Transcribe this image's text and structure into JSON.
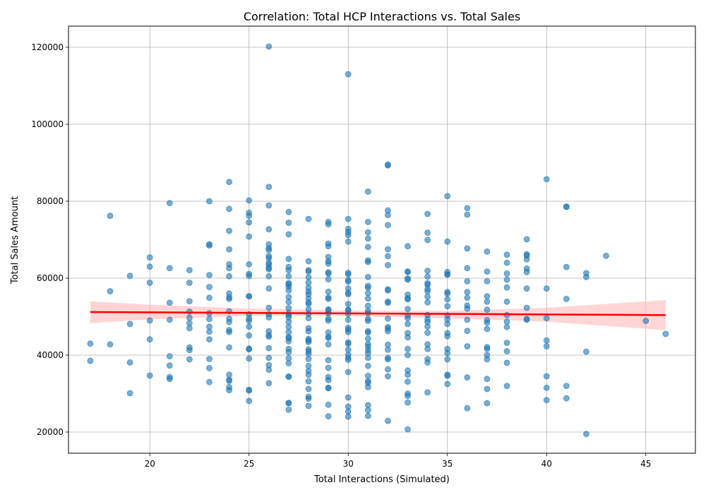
{
  "chart_data": {
    "type": "scatter",
    "title": "Correlation: Total HCP Interactions vs. Total Sales",
    "xlabel": "Total Interactions (Simulated)",
    "ylabel": "Total Sales Amount",
    "xlim": [
      15.9,
      47.5
    ],
    "ylim": [
      14500,
      125500
    ],
    "xticks": [
      20,
      25,
      30,
      35,
      40,
      45
    ],
    "yticks": [
      20000,
      40000,
      60000,
      80000,
      100000,
      120000
    ],
    "grid": true,
    "point_color": "#1f77b4",
    "regression_line_color": "#ff0000",
    "confidence_band_color": "#ffb3b3",
    "regression": {
      "x_start": 17,
      "x_end": 46,
      "y_start": 51200,
      "y_end": 50400
    },
    "confidence_band": {
      "x": [
        17,
        20,
        25,
        30,
        35,
        40,
        46
      ],
      "upper": [
        54000,
        53100,
        52100,
        51600,
        51500,
        52300,
        54300
      ],
      "lower": [
        48300,
        49300,
        50200,
        50100,
        49600,
        48700,
        46500
      ]
    },
    "points": [
      [
        26,
        120200
      ],
      [
        30,
        113000
      ],
      [
        32,
        89500
      ],
      [
        32,
        89300
      ],
      [
        40,
        85700
      ],
      [
        24,
        85000
      ],
      [
        26,
        83700
      ],
      [
        31,
        82500
      ],
      [
        35,
        81300
      ],
      [
        25,
        80200
      ],
      [
        23,
        80000
      ],
      [
        21,
        79500
      ],
      [
        26,
        78900
      ],
      [
        41,
        78600
      ],
      [
        41,
        78500
      ],
      [
        24,
        78000
      ],
      [
        36,
        78200
      ],
      [
        32,
        77600
      ],
      [
        25,
        77000
      ],
      [
        27,
        77200
      ],
      [
        34,
        76700
      ],
      [
        36,
        76500
      ],
      [
        18,
        76200
      ],
      [
        25,
        76200
      ],
      [
        32,
        76400
      ],
      [
        28,
        75400
      ],
      [
        30,
        75400
      ],
      [
        25,
        74500
      ],
      [
        27,
        74400
      ],
      [
        29,
        74600
      ],
      [
        29,
        74000
      ],
      [
        31,
        74600
      ],
      [
        32,
        73800
      ],
      [
        24,
        72300
      ],
      [
        26,
        72700
      ],
      [
        30,
        72800
      ],
      [
        30,
        72000
      ],
      [
        31,
        71900
      ],
      [
        27,
        71400
      ],
      [
        30,
        71200
      ],
      [
        34,
        71800
      ],
      [
        25,
        70800
      ],
      [
        31,
        70300
      ],
      [
        34,
        69900
      ],
      [
        39,
        70100
      ],
      [
        30,
        69500
      ],
      [
        35,
        69500
      ],
      [
        23,
        68800
      ],
      [
        23,
        68500
      ],
      [
        26,
        68800
      ],
      [
        29,
        69000
      ],
      [
        26,
        67800
      ],
      [
        26,
        67300
      ],
      [
        24,
        67500
      ],
      [
        29,
        68300
      ],
      [
        31,
        68100
      ],
      [
        32,
        67500
      ],
      [
        33,
        68300
      ],
      [
        36,
        67700
      ],
      [
        37,
        66900
      ],
      [
        38,
        66100
      ],
      [
        39,
        66200
      ],
      [
        39,
        65900
      ],
      [
        43,
        65800
      ],
      [
        20,
        65400
      ],
      [
        26,
        65700
      ],
      [
        26,
        65200
      ],
      [
        27,
        65000
      ],
      [
        29,
        65500
      ],
      [
        32,
        65700
      ],
      [
        39,
        64900
      ],
      [
        24,
        63600
      ],
      [
        25,
        63600
      ],
      [
        26,
        64000
      ],
      [
        26,
        63500
      ],
      [
        28,
        64400
      ],
      [
        29,
        64400
      ],
      [
        29,
        63800
      ],
      [
        31,
        64600
      ],
      [
        31,
        64200
      ],
      [
        32,
        63400
      ],
      [
        38,
        64000
      ],
      [
        20,
        63000
      ],
      [
        21,
        62600
      ],
      [
        22,
        62100
      ],
      [
        24,
        62600
      ],
      [
        26,
        62700
      ],
      [
        26,
        62300
      ],
      [
        27,
        62900
      ],
      [
        27,
        62100
      ],
      [
        28,
        62100
      ],
      [
        28,
        61700
      ],
      [
        29,
        61500
      ],
      [
        29,
        61200
      ],
      [
        30,
        61400
      ],
      [
        30,
        61000
      ],
      [
        33,
        61700
      ],
      [
        33,
        61600
      ],
      [
        34,
        61900
      ],
      [
        35,
        61600
      ],
      [
        35,
        61000
      ],
      [
        36,
        62600
      ],
      [
        37,
        61700
      ],
      [
        38,
        61200
      ],
      [
        39,
        62500
      ],
      [
        39,
        61600
      ],
      [
        41,
        62900
      ],
      [
        42,
        61300
      ],
      [
        19,
        60600
      ],
      [
        23,
        60800
      ],
      [
        24,
        60500
      ],
      [
        25,
        61100
      ],
      [
        25,
        60600
      ],
      [
        26,
        60500
      ],
      [
        27,
        60500
      ],
      [
        28,
        60200
      ],
      [
        29,
        59700
      ],
      [
        30,
        59500
      ],
      [
        30,
        59100
      ],
      [
        31,
        60300
      ],
      [
        33,
        59900
      ],
      [
        33,
        59600
      ],
      [
        34,
        60400
      ],
      [
        35,
        60900
      ],
      [
        36,
        59200
      ],
      [
        37,
        59200
      ],
      [
        38,
        59600
      ],
      [
        42,
        60300
      ],
      [
        20,
        58800
      ],
      [
        22,
        58800
      ],
      [
        27,
        58700
      ],
      [
        27,
        58400
      ],
      [
        28,
        58800
      ],
      [
        31,
        58000
      ],
      [
        34,
        58700
      ],
      [
        34,
        58300
      ],
      [
        23,
        57700
      ],
      [
        26,
        57300
      ],
      [
        27,
        57800
      ],
      [
        28,
        57500
      ],
      [
        30,
        57300
      ],
      [
        31,
        57500
      ],
      [
        32,
        57100
      ],
      [
        34,
        57200
      ],
      [
        38,
        57600
      ],
      [
        39,
        57300
      ],
      [
        40,
        57300
      ],
      [
        18,
        56600
      ],
      [
        24,
        56000
      ],
      [
        25,
        55300
      ],
      [
        27,
        56800
      ],
      [
        28,
        56500
      ],
      [
        28,
        55800
      ],
      [
        29,
        56500
      ],
      [
        30,
        56200
      ],
      [
        30,
        55800
      ],
      [
        31,
        56100
      ],
      [
        32,
        56800
      ],
      [
        33,
        55700
      ],
      [
        34,
        56600
      ],
      [
        35,
        56400
      ],
      [
        35,
        56000
      ],
      [
        36,
        56400
      ],
      [
        24,
        55000
      ],
      [
        24,
        54600
      ],
      [
        25,
        55300
      ],
      [
        27,
        55100
      ],
      [
        28,
        54700
      ],
      [
        29,
        55000
      ],
      [
        29,
        54600
      ],
      [
        31,
        54700
      ],
      [
        33,
        54800
      ],
      [
        33,
        54500
      ],
      [
        34,
        55200
      ],
      [
        35,
        54500
      ],
      [
        36,
        54900
      ],
      [
        37,
        55300
      ],
      [
        41,
        54600
      ],
      [
        21,
        53600
      ],
      [
        22,
        54000
      ],
      [
        23,
        54900
      ],
      [
        27,
        53800
      ],
      [
        28,
        53700
      ],
      [
        28,
        53300
      ],
      [
        30,
        53300
      ],
      [
        31,
        52800
      ],
      [
        32,
        53600
      ],
      [
        32,
        53900
      ],
      [
        34,
        53700
      ],
      [
        35,
        52700
      ],
      [
        36,
        52900
      ],
      [
        37,
        53900
      ],
      [
        38,
        53900
      ],
      [
        26,
        52300
      ],
      [
        27,
        52200
      ],
      [
        28,
        51900
      ],
      [
        29,
        51900
      ],
      [
        29,
        51600
      ],
      [
        30,
        51800
      ],
      [
        30,
        51600
      ],
      [
        31,
        51500
      ],
      [
        33,
        52000
      ],
      [
        36,
        52100
      ],
      [
        37,
        51800
      ],
      [
        39,
        52300
      ],
      [
        22,
        51300
      ],
      [
        23,
        50900
      ],
      [
        24,
        51400
      ],
      [
        25,
        50600
      ],
      [
        26,
        50600
      ],
      [
        27,
        50900
      ],
      [
        27,
        50400
      ],
      [
        28,
        50700
      ],
      [
        29,
        50900
      ],
      [
        30,
        50700
      ],
      [
        31,
        50900
      ],
      [
        33,
        50300
      ],
      [
        34,
        50400
      ],
      [
        35,
        50300
      ],
      [
        38,
        50400
      ],
      [
        20,
        49000
      ],
      [
        21,
        49200
      ],
      [
        22,
        49700
      ],
      [
        23,
        49400
      ],
      [
        24,
        49500
      ],
      [
        25,
        49500
      ],
      [
        26,
        49800
      ],
      [
        27,
        49800
      ],
      [
        28,
        49600
      ],
      [
        29,
        49500
      ],
      [
        30,
        49200
      ],
      [
        31,
        49400
      ],
      [
        32,
        49500
      ],
      [
        33,
        49600
      ],
      [
        34,
        49300
      ],
      [
        35,
        49300
      ],
      [
        36,
        49200
      ],
      [
        37,
        49100
      ],
      [
        39,
        49400
      ],
      [
        39,
        49200
      ],
      [
        40,
        49600
      ],
      [
        45,
        48900
      ],
      [
        19,
        48100
      ],
      [
        22,
        48300
      ],
      [
        24,
        48600
      ],
      [
        25,
        48900
      ],
      [
        27,
        48600
      ],
      [
        29,
        49000
      ],
      [
        31,
        48900
      ],
      [
        33,
        48100
      ],
      [
        34,
        48600
      ],
      [
        35,
        48100
      ],
      [
        37,
        48400
      ],
      [
        38,
        48700
      ],
      [
        22,
        47000
      ],
      [
        23,
        47400
      ],
      [
        25,
        47400
      ],
      [
        27,
        47300
      ],
      [
        28,
        47000
      ],
      [
        30,
        47100
      ],
      [
        30,
        46600
      ],
      [
        32,
        47300
      ],
      [
        32,
        46900
      ],
      [
        34,
        47400
      ],
      [
        36,
        46300
      ],
      [
        37,
        46800
      ],
      [
        38,
        47300
      ],
      [
        23,
        46100
      ],
      [
        24,
        46500
      ],
      [
        24,
        46000
      ],
      [
        26,
        46200
      ],
      [
        27,
        46000
      ],
      [
        28,
        46200
      ],
      [
        29,
        45900
      ],
      [
        30,
        46000
      ],
      [
        31,
        46200
      ],
      [
        31,
        45900
      ],
      [
        32,
        46200
      ],
      [
        33,
        45700
      ],
      [
        34,
        45800
      ],
      [
        35,
        45700
      ],
      [
        46,
        45500
      ],
      [
        25,
        45100
      ],
      [
        26,
        45200
      ],
      [
        26,
        44800
      ],
      [
        27,
        44700
      ],
      [
        27,
        44400
      ],
      [
        28,
        44200
      ],
      [
        29,
        44700
      ],
      [
        29,
        44500
      ],
      [
        31,
        44300
      ],
      [
        33,
        44600
      ],
      [
        35,
        44900
      ],
      [
        20,
        44100
      ],
      [
        23,
        44100
      ],
      [
        27,
        43600
      ],
      [
        28,
        43800
      ],
      [
        28,
        43400
      ],
      [
        30,
        43300
      ],
      [
        30,
        42900
      ],
      [
        31,
        42900
      ],
      [
        32,
        42700
      ],
      [
        34,
        42800
      ],
      [
        36,
        42300
      ],
      [
        37,
        42100
      ],
      [
        38,
        43200
      ],
      [
        40,
        43800
      ],
      [
        40,
        42300
      ],
      [
        22,
        42000
      ],
      [
        24,
        42000
      ],
      [
        25,
        41700
      ],
      [
        26,
        41800
      ],
      [
        27,
        41600
      ],
      [
        28,
        41500
      ],
      [
        28,
        41000
      ],
      [
        29,
        42800
      ],
      [
        30,
        41400
      ],
      [
        31,
        42200
      ],
      [
        31,
        41300
      ],
      [
        32,
        41400
      ],
      [
        33,
        41600
      ],
      [
        34,
        41600
      ],
      [
        35,
        41600
      ],
      [
        37,
        41600
      ],
      [
        38,
        41000
      ],
      [
        42,
        40900
      ],
      [
        17,
        43000
      ],
      [
        18,
        42800
      ],
      [
        22,
        41300
      ],
      [
        25,
        41500
      ],
      [
        27,
        40800
      ],
      [
        28,
        40300
      ],
      [
        30,
        40100
      ],
      [
        31,
        40500
      ],
      [
        33,
        40000
      ],
      [
        35,
        40500
      ],
      [
        37,
        40000
      ],
      [
        21,
        39700
      ],
      [
        22,
        38900
      ],
      [
        23,
        39000
      ],
      [
        25,
        39100
      ],
      [
        26,
        39300
      ],
      [
        27,
        39200
      ],
      [
        28,
        39000
      ],
      [
        29,
        38700
      ],
      [
        30,
        39300
      ],
      [
        30,
        38800
      ],
      [
        31,
        39300
      ],
      [
        32,
        39300
      ],
      [
        32,
        38900
      ],
      [
        34,
        39000
      ],
      [
        35,
        38900
      ],
      [
        37,
        38900
      ],
      [
        38,
        38000
      ],
      [
        17,
        38500
      ],
      [
        19,
        38100
      ],
      [
        21,
        37300
      ],
      [
        23,
        36600
      ],
      [
        26,
        37400
      ],
      [
        27,
        37900
      ],
      [
        28,
        37200
      ],
      [
        29,
        36700
      ],
      [
        31,
        37200
      ],
      [
        32,
        36300
      ],
      [
        33,
        36000
      ],
      [
        34,
        38100
      ],
      [
        26,
        36200
      ],
      [
        28,
        35900
      ],
      [
        30,
        35600
      ],
      [
        20,
        34700
      ],
      [
        24,
        34900
      ],
      [
        27,
        34400
      ],
      [
        27,
        34400
      ],
      [
        28,
        34900
      ],
      [
        29,
        34300
      ],
      [
        31,
        34600
      ],
      [
        32,
        34500
      ],
      [
        33,
        34900
      ],
      [
        35,
        34900
      ],
      [
        35,
        34600
      ],
      [
        36,
        34200
      ],
      [
        37,
        33800
      ],
      [
        40,
        34500
      ],
      [
        21,
        34300
      ],
      [
        21,
        33800
      ],
      [
        23,
        33000
      ],
      [
        24,
        33600
      ],
      [
        24,
        33300
      ],
      [
        26,
        32700
      ],
      [
        28,
        33200
      ],
      [
        29,
        33500
      ],
      [
        31,
        33300
      ],
      [
        31,
        32800
      ],
      [
        33,
        33100
      ],
      [
        35,
        32500
      ],
      [
        37,
        31200
      ],
      [
        38,
        32000
      ],
      [
        40,
        31500
      ],
      [
        41,
        32000
      ],
      [
        24,
        31700
      ],
      [
        24,
        30900
      ],
      [
        25,
        31000
      ],
      [
        25,
        30800
      ],
      [
        28,
        31200
      ],
      [
        29,
        31500
      ],
      [
        29,
        31400
      ],
      [
        31,
        31700
      ],
      [
        19,
        30100
      ],
      [
        33,
        30000
      ],
      [
        33,
        29400
      ],
      [
        34,
        30300
      ],
      [
        28,
        29200
      ],
      [
        28,
        28700
      ],
      [
        30,
        29000
      ],
      [
        40,
        28300
      ],
      [
        41,
        28800
      ],
      [
        25,
        28100
      ],
      [
        27,
        27600
      ],
      [
        27,
        27500
      ],
      [
        28,
        26800
      ],
      [
        29,
        27100
      ],
      [
        30,
        26600
      ],
      [
        31,
        27000
      ],
      [
        33,
        27700
      ],
      [
        36,
        26200
      ],
      [
        37,
        27500
      ],
      [
        27,
        25800
      ],
      [
        30,
        25300
      ],
      [
        31,
        25700
      ],
      [
        29,
        24100
      ],
      [
        30,
        24000
      ],
      [
        31,
        24200
      ],
      [
        32,
        22900
      ],
      [
        33,
        20700
      ],
      [
        42,
        19500
      ]
    ]
  }
}
